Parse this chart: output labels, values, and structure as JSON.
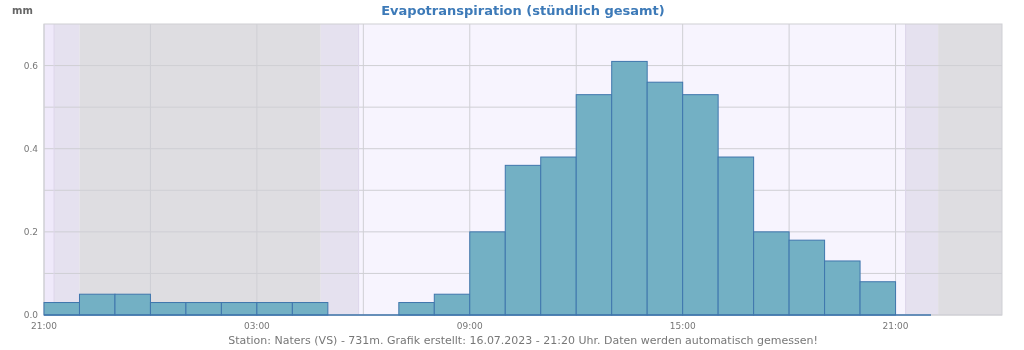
{
  "chart_data": {
    "type": "histogram",
    "title": "Evapotranspiration (stündlich gesamt)",
    "ylabel": "mm",
    "bins": [
      "2023-07-15T21:00",
      "2023-07-15T22:00",
      "2023-07-15T23:00",
      "2023-07-16T00:00",
      "2023-07-16T01:00",
      "2023-07-16T02:00",
      "2023-07-16T03:00",
      "2023-07-16T04:00",
      "2023-07-16T05:00",
      "2023-07-16T06:00",
      "2023-07-16T07:00",
      "2023-07-16T08:00",
      "2023-07-16T09:00",
      "2023-07-16T10:00",
      "2023-07-16T11:00",
      "2023-07-16T12:00",
      "2023-07-16T13:00",
      "2023-07-16T14:00",
      "2023-07-16T15:00",
      "2023-07-16T16:00",
      "2023-07-16T17:00",
      "2023-07-16T18:00",
      "2023-07-16T19:00",
      "2023-07-16T20:00",
      "2023-07-16T21:00",
      "2023-07-16T22:00"
    ],
    "values": [
      0.03,
      0.05,
      0.05,
      0.03,
      0.03,
      0.03,
      0.03,
      0.03,
      0,
      0,
      0.03,
      0.05,
      0.2,
      0.36,
      0.38,
      0.53,
      0.61,
      0.56,
      0.53,
      0.38,
      0.2,
      0.18,
      0.13,
      0.08,
      0
    ],
    "color": "#73b0c4",
    "xlim": [
      "2023-07-15T21:00",
      "2023-07-17T00:00"
    ],
    "xticks": [
      {
        "value": "2023-07-15T21:00",
        "label": "21:00"
      },
      {
        "value": "2023-07-16T00:00",
        "label": null
      },
      {
        "value": "2023-07-16T03:00",
        "label": "03:00"
      },
      {
        "value": "2023-07-16T06:00",
        "label": null
      },
      {
        "value": "2023-07-16T09:00",
        "label": "09:00"
      },
      {
        "value": "2023-07-16T12:00",
        "label": null
      },
      {
        "value": "2023-07-16T15:00",
        "label": "15:00"
      },
      {
        "value": "2023-07-16T18:00",
        "label": null
      },
      {
        "value": "2023-07-16T21:00",
        "label": "21:00"
      }
    ],
    "ylim": [
      0,
      0.7
    ],
    "yticks": [
      {
        "value": 0,
        "label": "0.0"
      },
      {
        "value": 0.1,
        "label": null
      },
      0.2,
      {
        "value": 0.3,
        "label": null
      },
      0.4,
      {
        "value": 0.5,
        "label": null
      },
      0.6
    ],
    "grid": true,
    "bands": [
      {
        "axis": "x",
        "from": "2023-07-15T21:00",
        "to": "2023-07-15T21:17",
        "color": "#efe9fa"
      },
      {
        "axis": "x",
        "from": "2023-07-15T21:17",
        "to": "2023-07-15T22:00",
        "color": "#e5e1ef"
      },
      {
        "axis": "x",
        "from": "2023-07-15T22:00",
        "to": "2023-07-16T04:48",
        "color": "#dedde1"
      },
      {
        "axis": "x",
        "from": "2023-07-16T04:48",
        "to": "2023-07-16T05:52",
        "color": "#e5e1ef"
      },
      {
        "axis": "x",
        "from": "2023-07-16T05:52",
        "to": "2023-07-16T21:17",
        "color": "#f7f4fe"
      },
      {
        "axis": "x",
        "from": "2023-07-16T21:17",
        "to": "2023-07-16T22:12",
        "color": "#e5e1ef"
      },
      {
        "axis": "x",
        "from": "2023-07-16T22:12",
        "to": "2023-07-17T00:00",
        "color": "#dedde1"
      }
    ],
    "ref_lines": [
      {
        "axis": "x",
        "value": "2023-07-15T21:17",
        "color": "#ddd6ea"
      },
      {
        "axis": "x",
        "value": "2023-07-16T05:52",
        "color": "#ddd6ea"
      },
      {
        "axis": "x",
        "value": "2023-07-16T21:17",
        "color": "#ddd6ea"
      }
    ],
    "annotations": [
      "Station: Naters (VS) - 731m. Grafik erstellt: 16.07.2023 - 21:20 Uhr. Daten werden automatisch gemessen!"
    ]
  }
}
